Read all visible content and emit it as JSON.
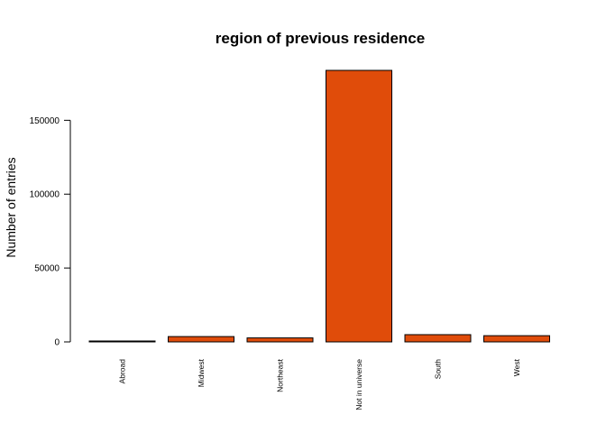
{
  "chart_data": {
    "type": "bar",
    "title": "region of previous residence",
    "xlabel": "",
    "ylabel": "Number of entries",
    "categories": [
      "Abroad",
      "Midwest",
      "Northeast",
      "Not in universe",
      "South",
      "West"
    ],
    "values": [
      600,
      3600,
      2700,
      183800,
      4900,
      4200
    ],
    "ylim": [
      0,
      183800
    ],
    "yticks": [
      0,
      50000,
      100000,
      150000
    ],
    "ytick_labels": [
      "0",
      "50000",
      "100000",
      "150000"
    ],
    "bar_color": "#E04C0A",
    "bar_edge_color": "#000000",
    "grid": false,
    "legend": "none"
  }
}
